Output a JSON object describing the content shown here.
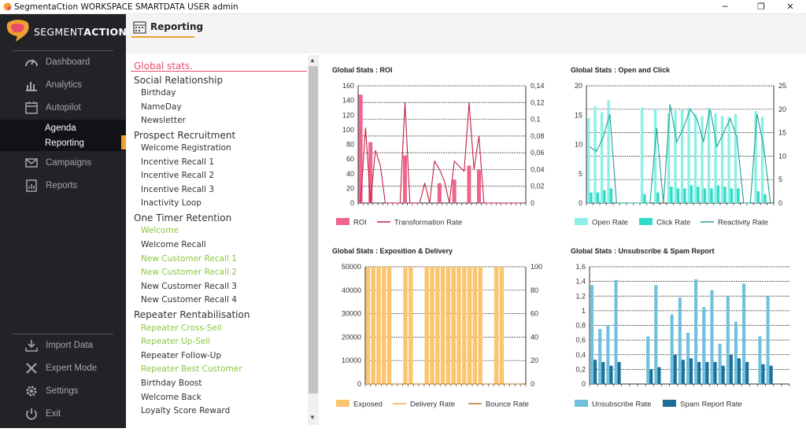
{
  "window": {
    "title": "SegmentaCtion WORKSPACE SMARTDATA USER admin",
    "min": "─",
    "max": "❐",
    "close": "✕"
  },
  "logo": {
    "part1": "SEGMENT",
    "part2": "ACTION"
  },
  "nav": {
    "dashboard": "Dashboard",
    "analytics": "Analytics",
    "autopilot": "Autopilot",
    "agenda": "Agenda",
    "reporting": "Reporting",
    "campaigns": "Campaigns",
    "reports": "Reports",
    "import_data": "Import Data",
    "expert_mode": "Expert Mode",
    "settings": "Settings",
    "exit": "Exit"
  },
  "header": {
    "title": "Reporting"
  },
  "list": {
    "global": "Global stats.",
    "items": [
      {
        "label": "Social Relationship",
        "kind": "cat"
      },
      {
        "label": "Birthday",
        "kind": "sub"
      },
      {
        "label": "NameDay",
        "kind": "sub"
      },
      {
        "label": "Newsletter",
        "kind": "sub"
      },
      {
        "label": "Prospect Recruitment",
        "kind": "cat"
      },
      {
        "label": "Welcome Registration",
        "kind": "sub"
      },
      {
        "label": "Incentive Recall 1",
        "kind": "sub"
      },
      {
        "label": "Incentive Recall 2",
        "kind": "sub"
      },
      {
        "label": "Incentive Recall 3",
        "kind": "sub"
      },
      {
        "label": "Inactivity Loop",
        "kind": "sub"
      },
      {
        "label": "One Timer Retention",
        "kind": "cat"
      },
      {
        "label": "Welcome",
        "kind": "subg"
      },
      {
        "label": "Welcome Recall",
        "kind": "sub"
      },
      {
        "label": "New Customer Recall 1",
        "kind": "subg"
      },
      {
        "label": "New Customer Recall 2",
        "kind": "subg"
      },
      {
        "label": "New Customer Recall 3",
        "kind": "sub"
      },
      {
        "label": "New Customer Recall 4",
        "kind": "sub"
      },
      {
        "label": "Repeater Rentabilisation",
        "kind": "cat"
      },
      {
        "label": "Repeater Cross-Sell",
        "kind": "subg"
      },
      {
        "label": "Repeater Up-Sell",
        "kind": "subg"
      },
      {
        "label": "Repeater Follow-Up",
        "kind": "sub"
      },
      {
        "label": "Repeater Best Customer",
        "kind": "subg"
      },
      {
        "label": "Birthday Boost",
        "kind": "sub"
      },
      {
        "label": "Welcome Back",
        "kind": "sub"
      },
      {
        "label": "Loyalty Score Reward",
        "kind": "sub"
      }
    ]
  },
  "colors": {
    "accent": "#f0a030",
    "pink": "#e84c6c",
    "green": "#8cc63f"
  },
  "chart_data": [
    {
      "type": "bar",
      "title": "Global Stats : ROI",
      "ylim": [
        0,
        160
      ],
      "yticks": [
        "0",
        "20",
        "40",
        "60",
        "80",
        "100",
        "120",
        "140",
        "160"
      ],
      "y2lim": [
        0,
        0.14
      ],
      "y2ticks": [
        "0",
        "0,02",
        "0,04",
        "0,06",
        "0,08",
        "0,1",
        "0,12",
        "0,14"
      ],
      "grid": "right-axis",
      "legend_position": "bottom-left",
      "series": [
        {
          "name": "ROI",
          "kind": "bar",
          "axis": "left",
          "color": "#f0648c",
          "values": [
            148,
            0,
            83,
            0,
            0,
            0,
            0,
            0,
            0,
            65,
            0,
            0,
            0,
            0,
            0,
            0,
            27,
            0,
            0,
            32,
            0,
            0,
            51,
            0,
            45,
            0,
            0,
            0,
            0,
            0,
            0,
            0,
            0,
            0
          ]
        },
        {
          "name": "Transformation Rate",
          "kind": "line",
          "axis": "right",
          "color": "#c42040",
          "values": [
            0,
            0.09,
            0,
            0.063,
            0.045,
            0,
            0,
            0,
            0,
            0.12,
            0,
            0,
            0,
            0.024,
            0,
            0.05,
            0.04,
            0.026,
            0,
            0.05,
            0.044,
            0.038,
            0.12,
            0.04,
            0.08,
            0,
            0,
            0,
            0,
            0,
            0,
            0,
            0,
            0
          ]
        }
      ]
    },
    {
      "type": "bar",
      "title": "Global Stats : Open and Click",
      "ylim": [
        0,
        20
      ],
      "yticks": [
        "0",
        "5",
        "10",
        "15",
        "20"
      ],
      "y2lim": [
        0,
        25
      ],
      "y2ticks": [
        "0",
        "5",
        "10",
        "15",
        "20",
        "25"
      ],
      "grid": "right-axis",
      "legend_position": "bottom-left",
      "series": [
        {
          "name": "Open Rate",
          "kind": "bar",
          "axis": "left",
          "color": "#8af0e6",
          "values": [
            14.5,
            16.5,
            15.5,
            17.5,
            0,
            0,
            0,
            0,
            16.3,
            0,
            16,
            0,
            15.3,
            15.8,
            16,
            16.2,
            15.2,
            14.8,
            16.3,
            15.3,
            14.8,
            14.7,
            15.2,
            0,
            0,
            15.7,
            14.7,
            0
          ]
        },
        {
          "name": "Click Rate",
          "kind": "bar",
          "axis": "left",
          "color": "#30dcc8",
          "values": [
            1.8,
            1.8,
            2.2,
            2.5,
            0,
            0,
            0,
            0,
            1.5,
            0,
            1.8,
            0,
            2.8,
            2.5,
            2.5,
            3.0,
            2.8,
            2.5,
            2.5,
            3.0,
            2.8,
            2.5,
            2.5,
            0,
            0,
            2.0,
            1.5,
            0
          ]
        },
        {
          "name": "Reactivity Rate",
          "kind": "line",
          "axis": "right",
          "color": "#20a090",
          "values": [
            12,
            11,
            14,
            19,
            0,
            0,
            0,
            0,
            0,
            0,
            16,
            0,
            21,
            13,
            16,
            20,
            18,
            13,
            20,
            12,
            15,
            18,
            14,
            0,
            0,
            19,
            12,
            0
          ]
        }
      ]
    },
    {
      "type": "bar",
      "title": "Global Stats : Exposition & Delivery",
      "ylim": [
        0,
        50000
      ],
      "yticks": [
        "0",
        "10000",
        "20000",
        "30000",
        "40000",
        "50000"
      ],
      "y2lim": [
        0,
        100
      ],
      "y2ticks": [
        "0",
        "20",
        "40",
        "60",
        "80",
        "100"
      ],
      "grid": "right-axis",
      "legend_position": "bottom-left",
      "series": [
        {
          "name": "Exposed",
          "kind": "bar",
          "axis": "left",
          "color": "#fcc46c",
          "values": [
            50000,
            50000,
            50000,
            50000,
            50000,
            0,
            0,
            50000,
            50000,
            0,
            0,
            50000,
            50000,
            50000,
            50000,
            50000,
            50000,
            50000,
            50000,
            50000,
            50000,
            50000,
            0,
            0,
            50000,
            50000,
            0,
            0,
            0,
            0
          ]
        },
        {
          "name": "Delivery Rate",
          "kind": "line",
          "axis": "right",
          "color": "#f2b04a",
          "values": [
            0,
            0,
            0,
            0,
            0,
            0,
            0,
            0,
            0,
            0,
            0,
            0,
            0,
            0,
            0,
            0,
            0,
            0,
            0,
            0,
            0,
            0,
            0,
            0,
            0,
            0,
            0,
            0,
            0,
            0
          ]
        },
        {
          "name": "Bounce Rate",
          "kind": "line",
          "axis": "right",
          "color": "#b8781c",
          "values": [
            0,
            0,
            0,
            0,
            0,
            0,
            0,
            0,
            0,
            0,
            0,
            0,
            0,
            0,
            0,
            0,
            0,
            0,
            0,
            0,
            0,
            0,
            0,
            0,
            0,
            0,
            0,
            0,
            0,
            0
          ]
        }
      ]
    },
    {
      "type": "bar",
      "title": "Global Stats : Unsubscribe & Spam Report",
      "ylim": [
        0,
        1.6
      ],
      "yticks": [
        "0",
        "0,2",
        "0,4",
        "0,6",
        "0,8",
        "1",
        "1,2",
        "1,4",
        "1,6"
      ],
      "grid": "left-axis",
      "legend_position": "bottom-left",
      "series": [
        {
          "name": "Unsubscribe Rate",
          "kind": "bar",
          "axis": "left",
          "color": "#70c0dc",
          "values": [
            1.35,
            0.75,
            0.8,
            1.42,
            0,
            0,
            0,
            0.65,
            1.35,
            0,
            0.95,
            1.18,
            0.7,
            1.43,
            1.05,
            1.28,
            0.55,
            1.2,
            0.85,
            1.37,
            0,
            0.65,
            1.2,
            0,
            0
          ]
        },
        {
          "name": "Spam Report Rate",
          "kind": "bar",
          "axis": "left",
          "color": "#1c6e98",
          "values": [
            0.33,
            0.3,
            0.25,
            0.3,
            0,
            0,
            0,
            0.2,
            0.23,
            0,
            0.4,
            0.33,
            0.35,
            0.3,
            0.3,
            0.3,
            0.25,
            0.4,
            0.35,
            0.3,
            0,
            0.27,
            0.25,
            0,
            0
          ]
        }
      ]
    }
  ]
}
